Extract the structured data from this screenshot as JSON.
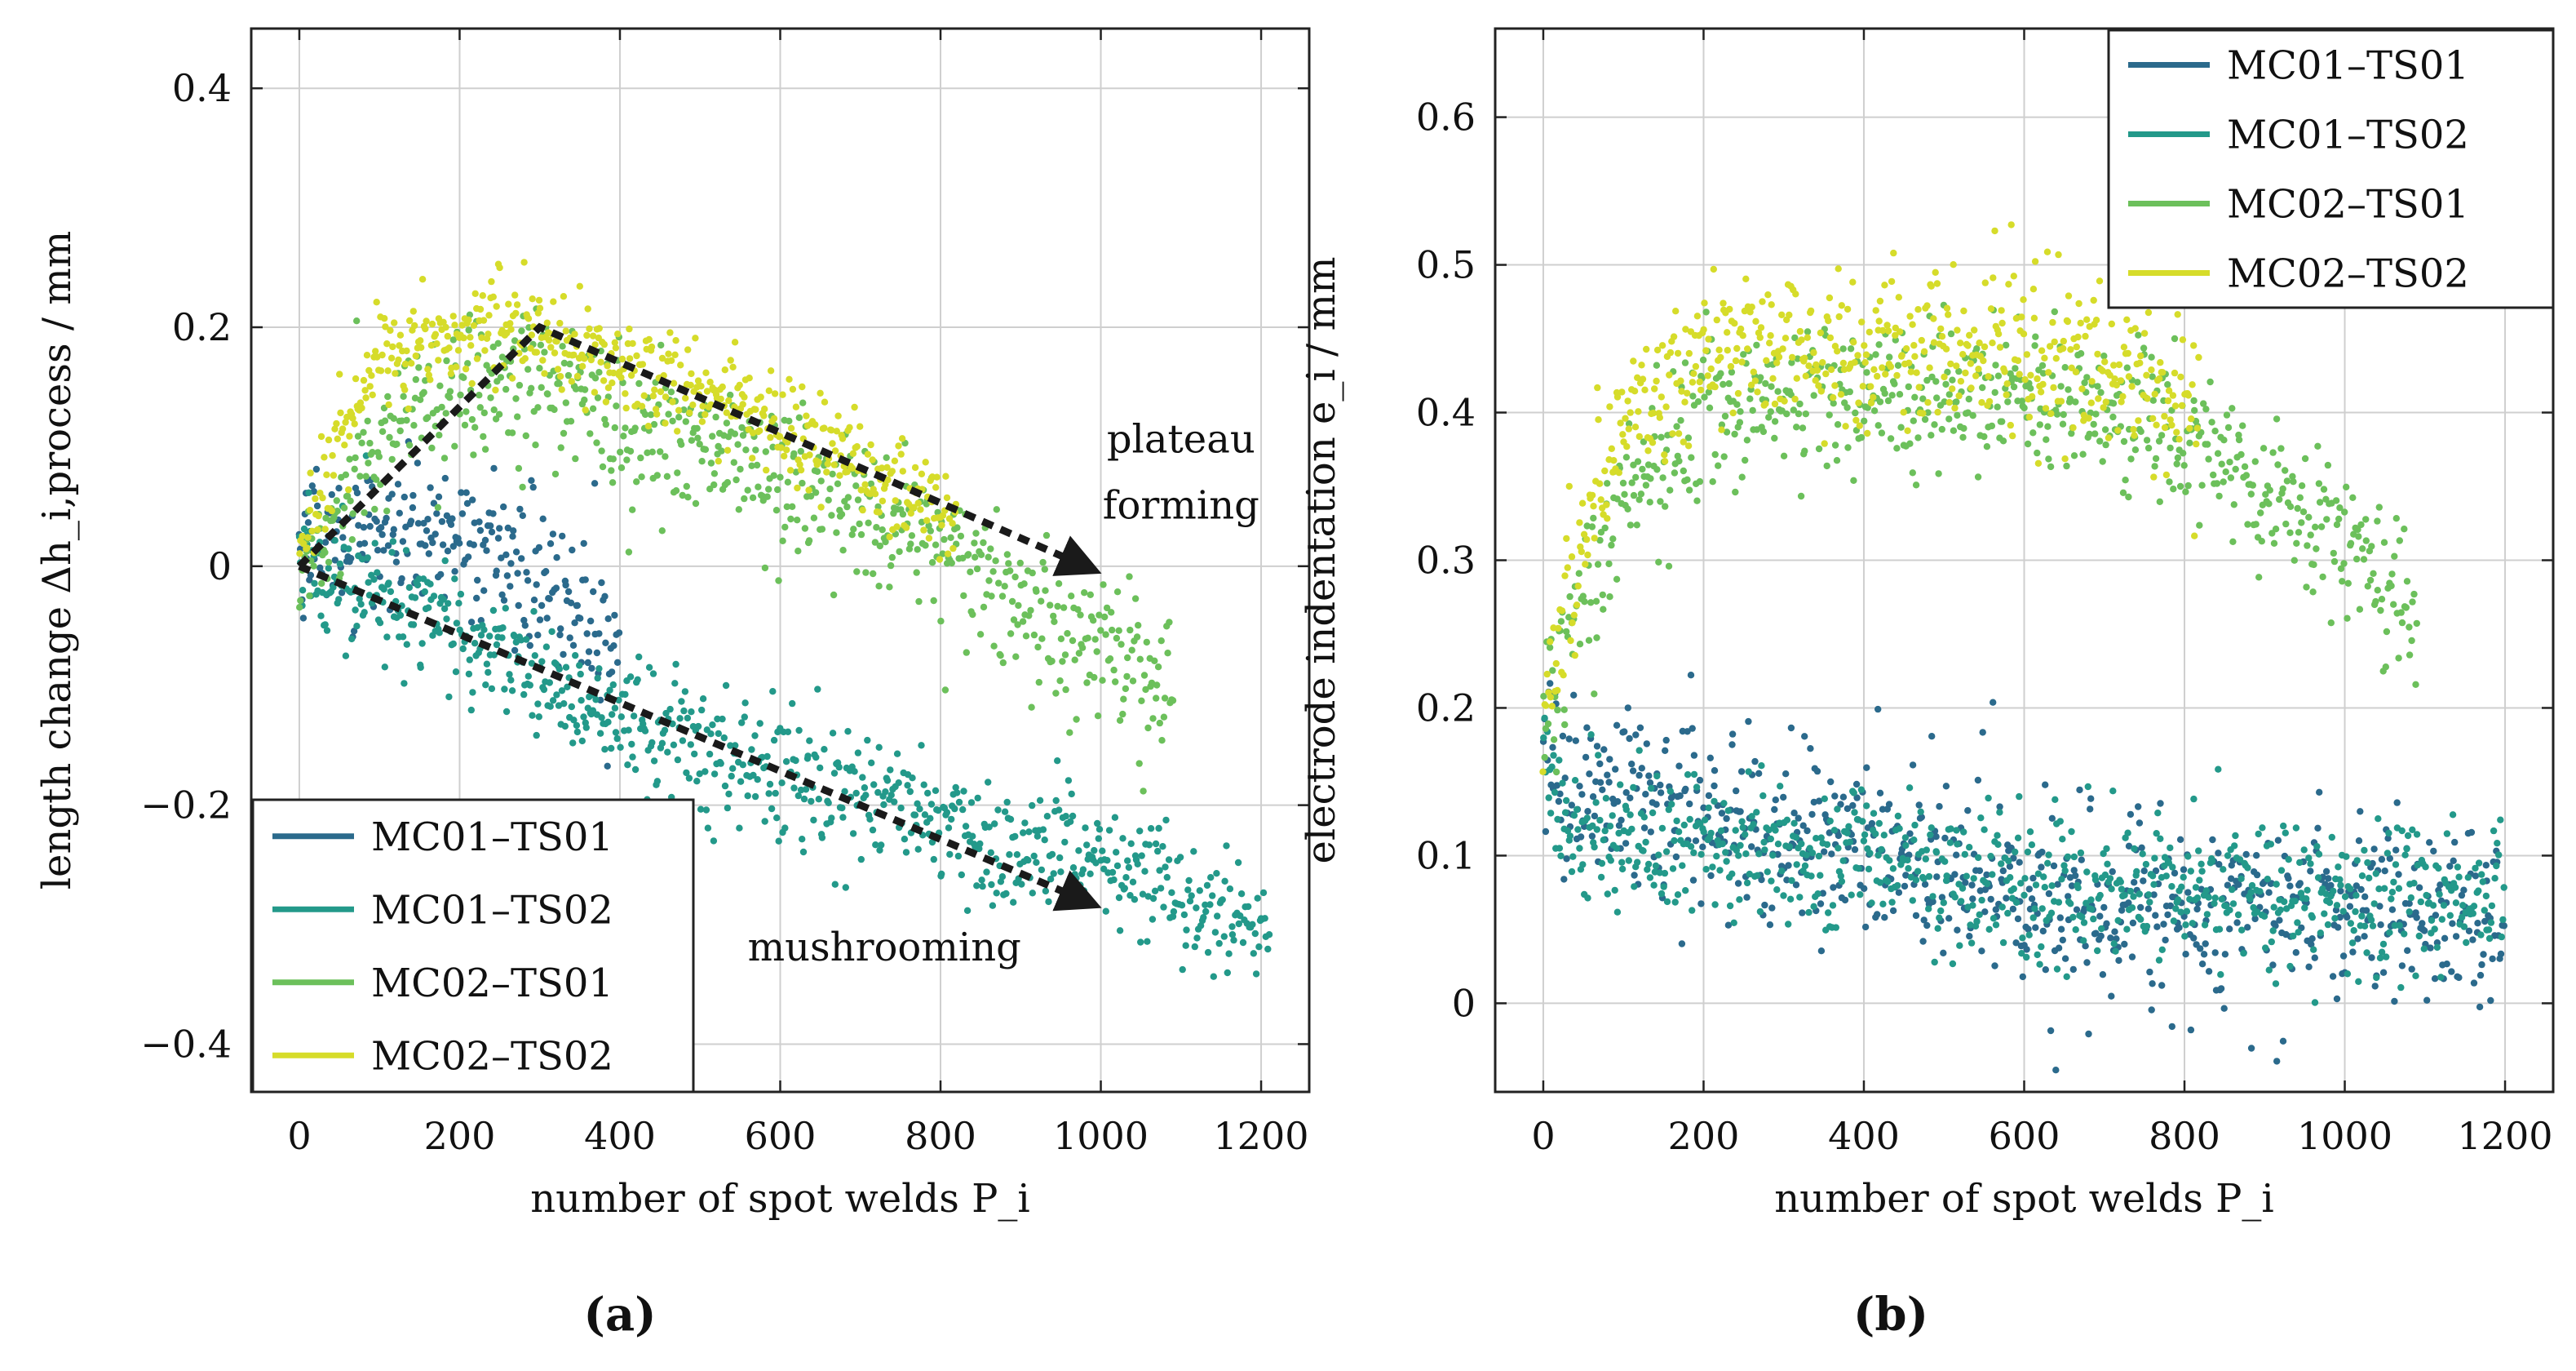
{
  "colors": {
    "MC01-TS01": "#2b6a8c",
    "MC01-TS02": "#23998a",
    "MC02-TS01": "#6cc05b",
    "MC02-TS02": "#d6dc2a"
  },
  "chart_data": [
    {
      "id": "a",
      "caption": "(a)",
      "type": "scatter",
      "xlabel": "number of spot welds P_i",
      "ylabel": "length change Δh_i,process / mm",
      "xlim": [
        -60,
        1260
      ],
      "ylim": [
        -0.44,
        0.45
      ],
      "xticks": [
        0,
        200,
        400,
        600,
        800,
        1000,
        1200
      ],
      "yticks": [
        -0.4,
        -0.2,
        0,
        0.2,
        0.4
      ],
      "ytick_labels": [
        "−0.4",
        "−0.2",
        "0",
        "0.2",
        "0.4"
      ],
      "grid": true,
      "legend_position": "bottom-left",
      "series": [
        {
          "name": "MC01–TS01",
          "color_key": "MC01-TS01",
          "n_max": 400,
          "trend": [
            [
              0,
              0.02
            ],
            [
              100,
              0.03
            ],
            [
              200,
              0.02
            ],
            [
              300,
              0.0
            ],
            [
              400,
              -0.08
            ],
            [
              600,
              -0.14
            ],
            [
              800,
              -0.18
            ],
            [
              1000,
              -0.24
            ],
            [
              1200,
              -0.27
            ]
          ],
          "noise": 0.03
        },
        {
          "name": "MC01–TS02",
          "color_key": "MC01-TS02",
          "n_max": 1210,
          "trend": [
            [
              0,
              0.0
            ],
            [
              100,
              -0.02
            ],
            [
              200,
              -0.05
            ],
            [
              300,
              -0.1
            ],
            [
              400,
              -0.13
            ],
            [
              600,
              -0.17
            ],
            [
              800,
              -0.22
            ],
            [
              1000,
              -0.25
            ],
            [
              1200,
              -0.3
            ]
          ],
          "noise": 0.025
        },
        {
          "name": "MC02–TS01",
          "color_key": "MC02-TS01",
          "n_max": 1090,
          "trend": [
            [
              0,
              0.0
            ],
            [
              100,
              0.1
            ],
            [
              200,
              0.15
            ],
            [
              300,
              0.16
            ],
            [
              400,
              0.12
            ],
            [
              600,
              0.08
            ],
            [
              800,
              0.02
            ],
            [
              900,
              -0.03
            ],
            [
              1000,
              -0.07
            ],
            [
              1090,
              -0.1
            ]
          ],
          "noise": 0.03
        },
        {
          "name": "MC02–TS02",
          "color_key": "MC02-TS02",
          "n_max": 820,
          "trend": [
            [
              0,
              0.0
            ],
            [
              50,
              0.1
            ],
            [
              100,
              0.18
            ],
            [
              250,
              0.2
            ],
            [
              400,
              0.17
            ],
            [
              600,
              0.12
            ],
            [
              820,
              0.04
            ]
          ],
          "noise": 0.02
        }
      ],
      "annotations": [
        {
          "text": "plateau",
          "x": 1100,
          "y": 0.095
        },
        {
          "text": "forming",
          "x": 1100,
          "y": 0.04
        },
        {
          "text": "mushrooming",
          "x": 730,
          "y": -0.33
        }
      ],
      "arrows": [
        {
          "points": [
            [
              0,
              0.0
            ],
            [
              300,
              0.2
            ],
            [
              980,
              0.0
            ]
          ]
        },
        {
          "points": [
            [
              0,
              0.0
            ],
            [
              980,
              -0.28
            ]
          ]
        }
      ]
    },
    {
      "id": "b",
      "caption": "(b)",
      "type": "scatter",
      "xlabel": "number of spot welds P_i",
      "ylabel": "electrode indentation e_i / mm",
      "xlim": [
        -60,
        1260
      ],
      "ylim": [
        -0.06,
        0.66
      ],
      "xticks": [
        0,
        200,
        400,
        600,
        800,
        1000,
        1200
      ],
      "yticks": [
        0,
        0.1,
        0.2,
        0.3,
        0.4,
        0.5,
        0.6
      ],
      "ytick_labels": [
        "0",
        "0.1",
        "0.2",
        "0.3",
        "0.4",
        "0.5",
        "0.6"
      ],
      "grid": true,
      "legend_position": "top-right",
      "series": [
        {
          "name": "MC01–TS01",
          "color_key": "MC01-TS01",
          "n_max": 1200,
          "trend": [
            [
              0,
              0.2
            ],
            [
              20,
              0.14
            ],
            [
              100,
              0.15
            ],
            [
              200,
              0.12
            ],
            [
              400,
              0.11
            ],
            [
              600,
              0.07
            ],
            [
              800,
              0.065
            ],
            [
              1000,
              0.06
            ],
            [
              1200,
              0.06
            ]
          ],
          "noise": 0.03
        },
        {
          "name": "MC01–TS02",
          "color_key": "MC01-TS02",
          "n_max": 1200,
          "trend": [
            [
              0,
              0.18
            ],
            [
              20,
              0.12
            ],
            [
              100,
              0.11
            ],
            [
              300,
              0.1
            ],
            [
              500,
              0.09
            ],
            [
              800,
              0.08
            ],
            [
              1000,
              0.07
            ],
            [
              1200,
              0.07
            ]
          ],
          "noise": 0.025
        },
        {
          "name": "MC02–TS01",
          "color_key": "MC02-TS01",
          "n_max": 1090,
          "trend": [
            [
              0,
              0.18
            ],
            [
              30,
              0.25
            ],
            [
              100,
              0.35
            ],
            [
              200,
              0.4
            ],
            [
              400,
              0.41
            ],
            [
              600,
              0.41
            ],
            [
              800,
              0.39
            ],
            [
              900,
              0.35
            ],
            [
              1000,
              0.32
            ],
            [
              1090,
              0.26
            ]
          ],
          "noise": 0.025
        },
        {
          "name": "MC02–TS02",
          "color_key": "MC02-TS02",
          "n_max": 820,
          "trend": [
            [
              0,
              0.18
            ],
            [
              30,
              0.28
            ],
            [
              100,
              0.4
            ],
            [
              200,
              0.44
            ],
            [
              400,
              0.44
            ],
            [
              600,
              0.44
            ],
            [
              820,
              0.41
            ]
          ],
          "noise": 0.025
        }
      ]
    }
  ]
}
